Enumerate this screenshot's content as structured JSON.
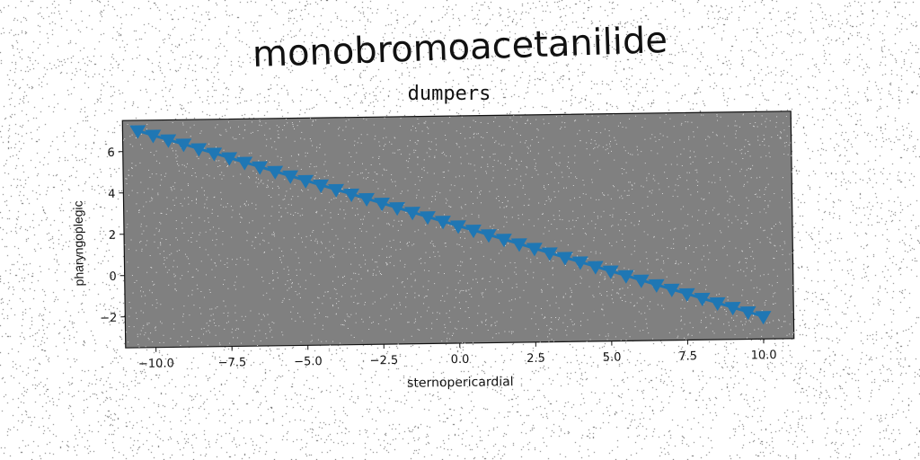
{
  "figure": {
    "suptitle": "monobromoacetanilide"
  },
  "colors": {
    "plot_bg": "#808080",
    "series": "#1f77b4",
    "axis": "#111111"
  },
  "chart_data": {
    "type": "line",
    "title": "dumpers",
    "xlabel": "sternopericardial",
    "ylabel": "pharyngoplegic",
    "xlim": [
      -11.0,
      11.0
    ],
    "ylim": [
      -3.5,
      7.5
    ],
    "xticks": [
      -10.0,
      -7.5,
      -5.0,
      -2.5,
      0.0,
      2.5,
      5.0,
      7.5,
      10.0
    ],
    "xtick_labels": [
      "−10.0",
      "−7.5",
      "−5.0",
      "−2.5",
      "0.0",
      "2.5",
      "5.0",
      "7.5",
      "10.0"
    ],
    "yticks": [
      -2,
      0,
      2,
      4,
      6
    ],
    "ytick_labels": [
      "−2",
      "0",
      "2",
      "4",
      "6"
    ],
    "grid": false,
    "series": [
      {
        "marker": "triangle-down",
        "x": [
          -10.5,
          -10.0,
          -9.5,
          -9.0,
          -8.5,
          -8.0,
          -7.5,
          -7.0,
          -6.5,
          -6.0,
          -5.5,
          -5.0,
          -4.5,
          -4.0,
          -3.5,
          -3.0,
          -2.5,
          -2.0,
          -1.5,
          -1.0,
          -0.5,
          0.0,
          0.5,
          1.0,
          1.5,
          2.0,
          2.5,
          3.0,
          3.5,
          4.0,
          4.5,
          5.0,
          5.5,
          6.0,
          6.5,
          7.0,
          7.5,
          8.0,
          8.5,
          9.0,
          9.5,
          10.0
        ],
        "y": [
          7.0,
          6.77,
          6.54,
          6.32,
          6.09,
          5.86,
          5.63,
          5.4,
          5.17,
          4.94,
          4.71,
          4.48,
          4.25,
          4.02,
          3.79,
          3.56,
          3.33,
          3.1,
          2.87,
          2.64,
          2.41,
          2.18,
          1.96,
          1.73,
          1.5,
          1.27,
          1.04,
          0.81,
          0.58,
          0.35,
          0.12,
          -0.11,
          -0.34,
          -0.57,
          -0.8,
          -1.03,
          -1.26,
          -1.49,
          -1.72,
          -1.95,
          -2.18,
          -2.41
        ]
      }
    ]
  }
}
